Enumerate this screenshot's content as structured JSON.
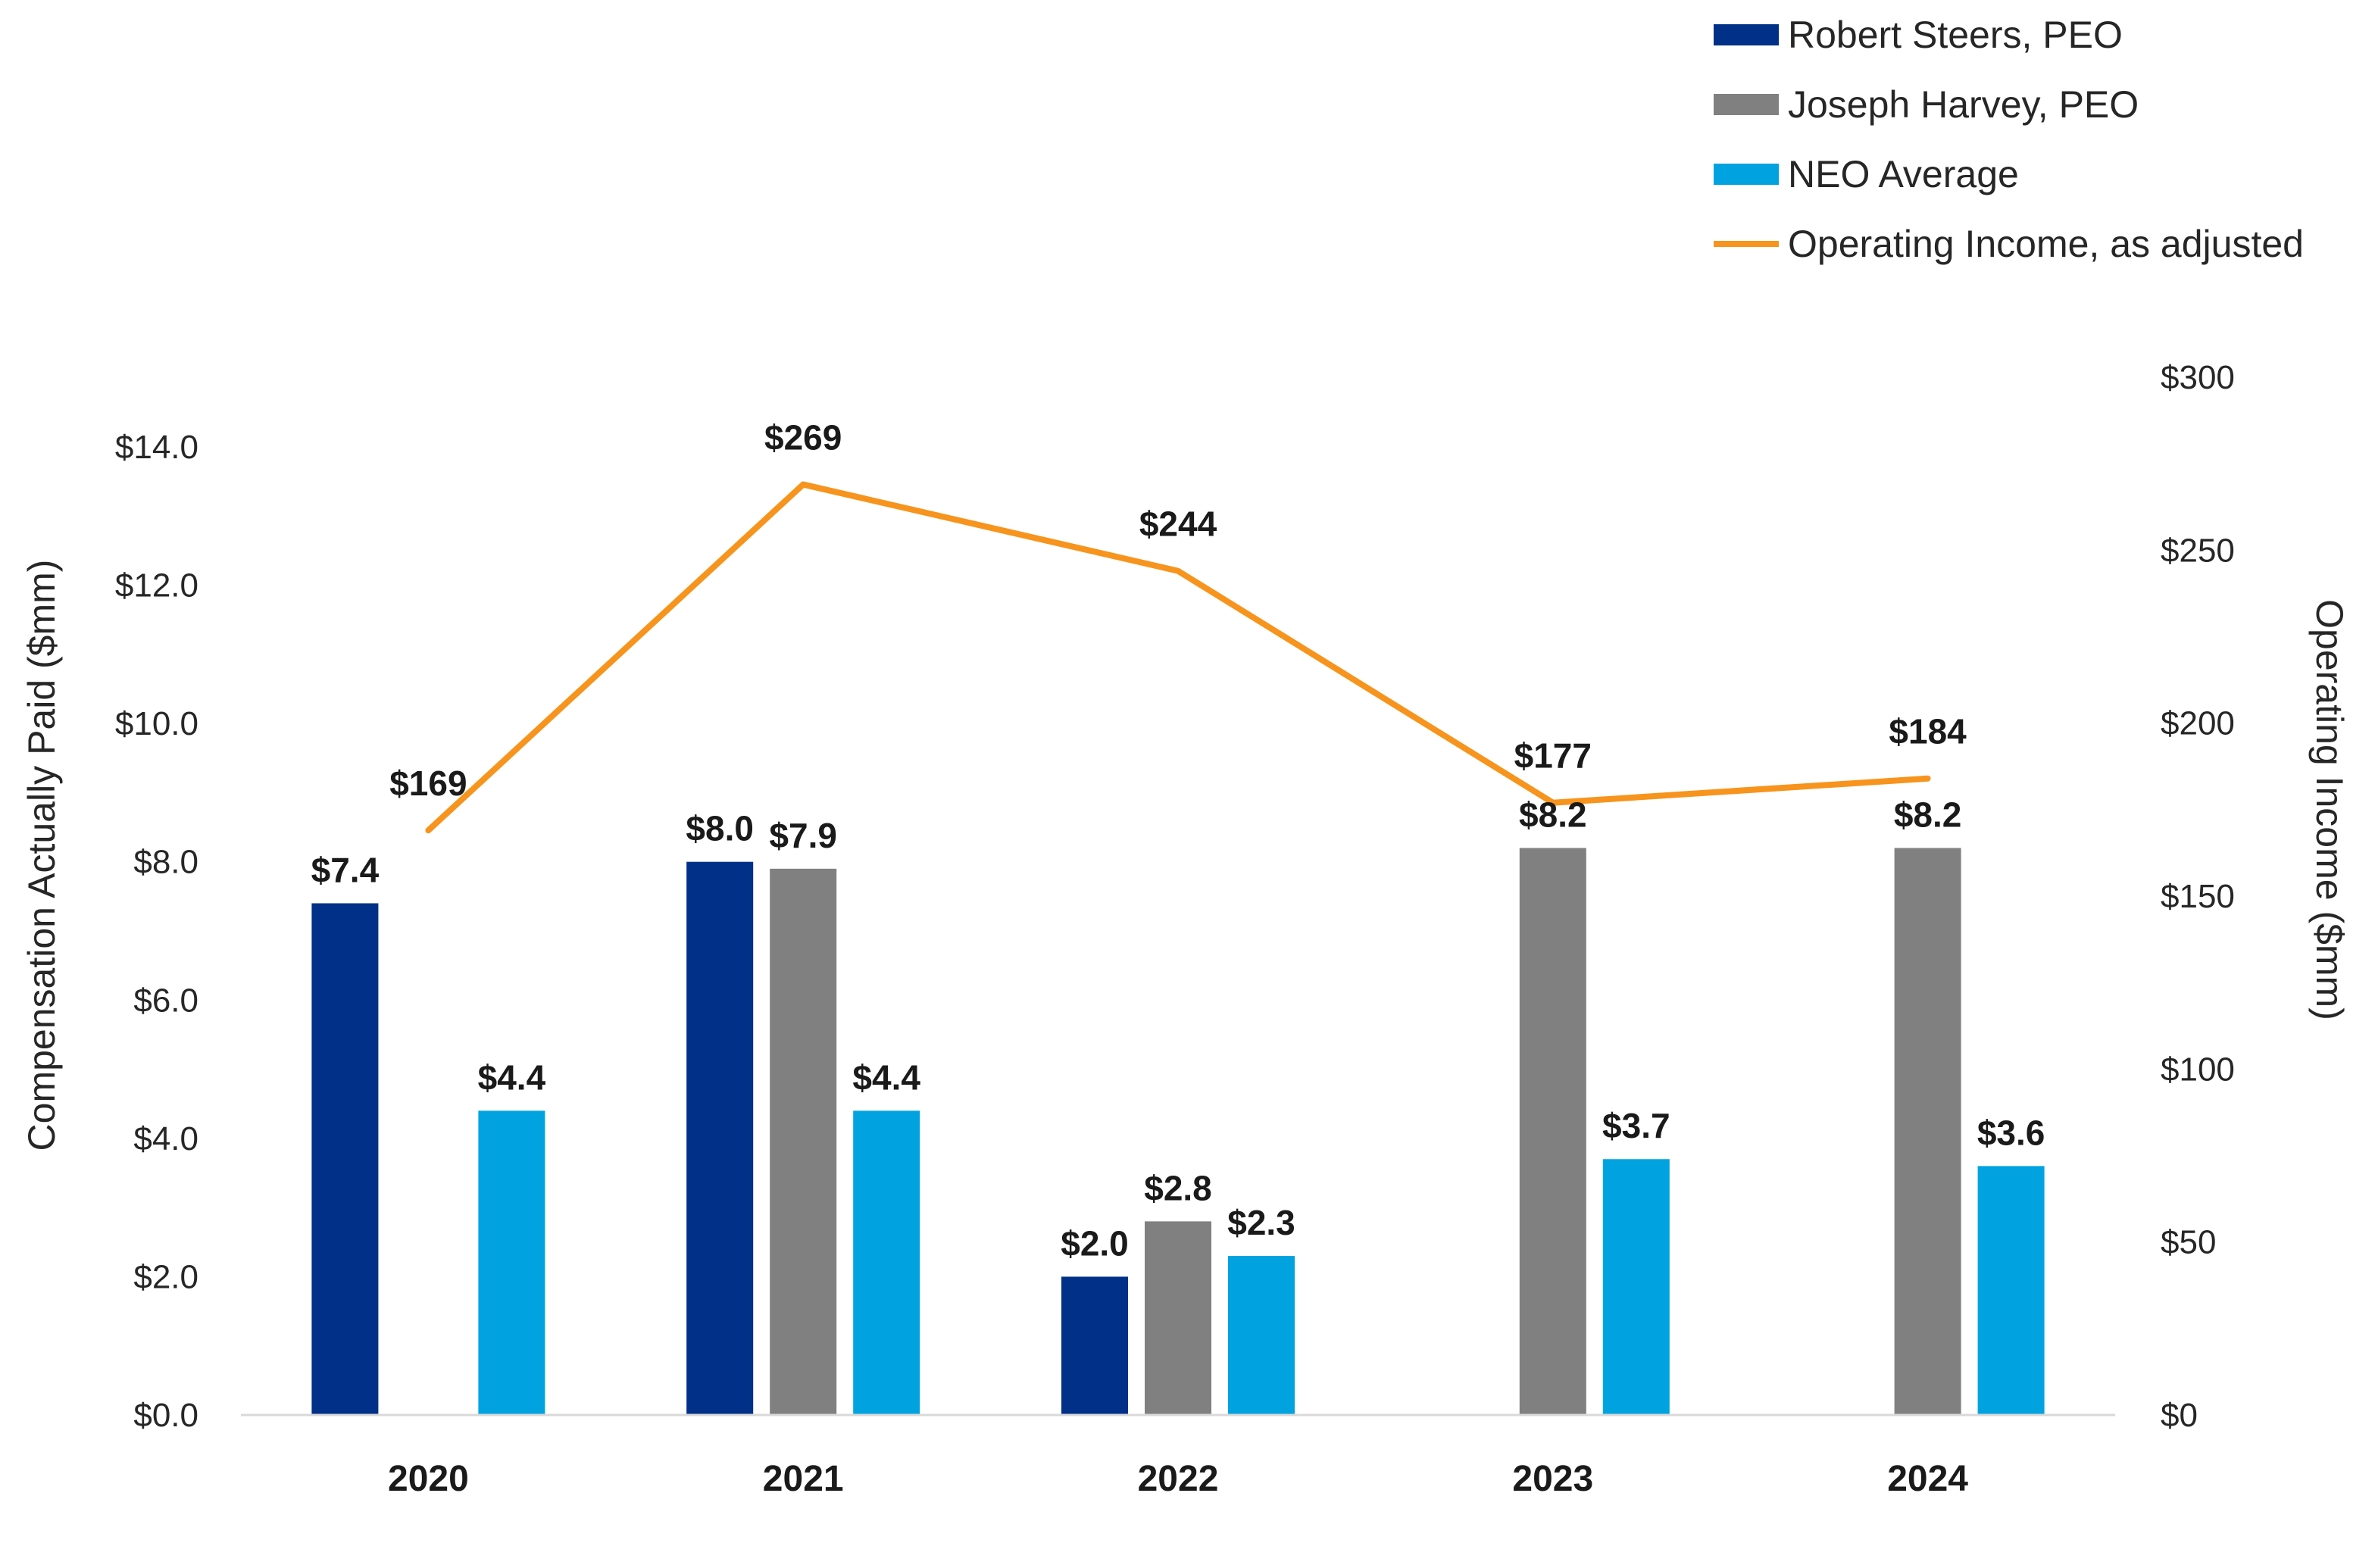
{
  "chart_data": {
    "type": "bar",
    "categories": [
      "2020",
      "2021",
      "2022",
      "2023",
      "2024"
    ],
    "series": [
      {
        "name": "Robert Steers, PEO",
        "color": "#003087",
        "values": [
          7.4,
          8.0,
          2.0,
          null,
          null
        ],
        "labels": [
          "$7.4",
          "$8.0",
          "$2.0",
          null,
          null
        ]
      },
      {
        "name": "Joseph Harvey, PEO",
        "color": "#808080",
        "values": [
          null,
          7.9,
          2.8,
          8.2,
          8.2
        ],
        "labels": [
          null,
          "$7.9",
          "$2.8",
          "$8.2",
          "$8.2"
        ]
      },
      {
        "name": "NEO Average",
        "color": "#00A3E0",
        "values": [
          4.4,
          4.4,
          2.3,
          3.7,
          3.6
        ],
        "labels": [
          "$4.4",
          "$4.4",
          "$2.3",
          "$3.7",
          "$3.6"
        ]
      }
    ],
    "line_series": {
      "name": "Operating Income, as adjusted",
      "color": "#F7941D",
      "axis": "right",
      "values": [
        169,
        269,
        244,
        177,
        184
      ],
      "labels": [
        "$169",
        "$269",
        "$244",
        "$177",
        "$184"
      ]
    },
    "left_axis": {
      "label": "Compensation Actually Paid ($mm)",
      "range": [
        0,
        14
      ],
      "ticks": [
        0,
        2,
        4,
        6,
        8,
        10,
        12,
        14
      ],
      "tick_labels": [
        "$0.0",
        "$2.0",
        "$4.0",
        "$6.0",
        "$8.0",
        "$10.0",
        "$12.0",
        "$14.0"
      ]
    },
    "right_axis": {
      "label": "Operating Income ($mm)",
      "range": [
        0,
        300
      ],
      "ticks": [
        0,
        50,
        100,
        150,
        200,
        250,
        300
      ],
      "tick_labels": [
        "$0",
        "$50",
        "$100",
        "$150",
        "$200",
        "$250",
        "$300"
      ]
    },
    "legend": {
      "position": "top-right",
      "entries": [
        "Robert Steers, PEO",
        "Joseph Harvey, PEO",
        "NEO Average",
        "Operating Income, as adjusted"
      ]
    },
    "grid": false
  }
}
